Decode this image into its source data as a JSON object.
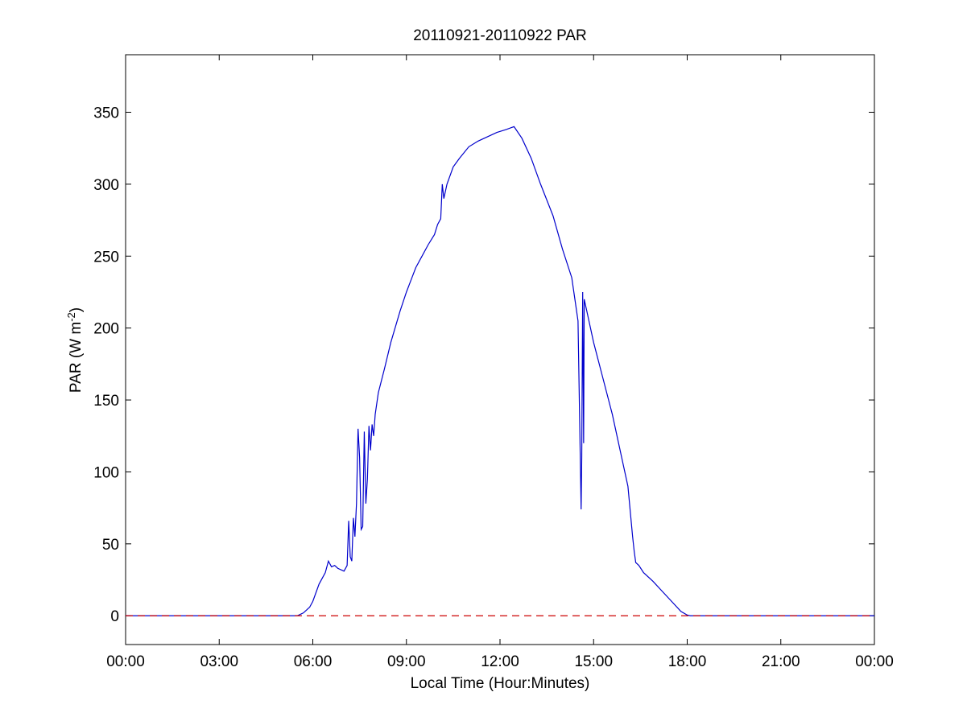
{
  "chart_data": {
    "type": "line",
    "title": "20110921-20110922 PAR",
    "xlabel": "Local Time (Hour:Minutes)",
    "ylabel": "PAR (W m",
    "ylabel_sup": "-2",
    "ylabel_close": ")",
    "xlim": [
      0,
      24
    ],
    "ylim": [
      -20,
      390
    ],
    "xticks": [
      {
        "value": 0,
        "label": "00:00"
      },
      {
        "value": 3,
        "label": "03:00"
      },
      {
        "value": 6,
        "label": "06:00"
      },
      {
        "value": 9,
        "label": "09:00"
      },
      {
        "value": 12,
        "label": "12:00"
      },
      {
        "value": 15,
        "label": "15:00"
      },
      {
        "value": 18,
        "label": "18:00"
      },
      {
        "value": 21,
        "label": "21:00"
      },
      {
        "value": 24,
        "label": "00:00"
      }
    ],
    "yticks": [
      {
        "value": 0,
        "label": "0"
      },
      {
        "value": 50,
        "label": "50"
      },
      {
        "value": 100,
        "label": "100"
      },
      {
        "value": 150,
        "label": "150"
      },
      {
        "value": 200,
        "label": "200"
      },
      {
        "value": 250,
        "label": "250"
      },
      {
        "value": 300,
        "label": "300"
      },
      {
        "value": 350,
        "label": "350"
      }
    ],
    "grid": false,
    "legend": "none",
    "series": [
      {
        "style": "solid",
        "color": "#0000cc",
        "x": [
          0,
          5.5,
          5.7,
          5.9,
          6.0,
          6.2,
          6.4,
          6.5,
          6.6,
          6.7,
          6.8,
          7.0,
          7.1,
          7.15,
          7.2,
          7.25,
          7.3,
          7.35,
          7.4,
          7.45,
          7.5,
          7.55,
          7.6,
          7.65,
          7.7,
          7.75,
          7.8,
          7.85,
          7.9,
          7.95,
          8.0,
          8.1,
          8.3,
          8.5,
          8.8,
          9.0,
          9.3,
          9.5,
          9.7,
          9.9,
          10.0,
          10.1,
          10.15,
          10.2,
          10.3,
          10.5,
          10.7,
          11.0,
          11.3,
          11.6,
          11.9,
          12.2,
          12.45,
          12.7,
          13.0,
          13.3,
          13.7,
          14.0,
          14.3,
          14.5,
          14.6,
          14.62,
          14.65,
          14.68,
          14.7,
          14.75,
          14.8,
          14.85,
          15.0,
          15.3,
          15.6,
          15.9,
          16.1,
          16.25,
          16.3,
          16.35,
          16.45,
          16.6,
          16.9,
          17.2,
          17.5,
          17.8,
          18.0,
          18.1,
          18.2,
          18.5,
          24
        ],
        "y": [
          0,
          0,
          2,
          6,
          10,
          22,
          30,
          38,
          34,
          35,
          33,
          31,
          35,
          66,
          41,
          38,
          68,
          55,
          78,
          130,
          110,
          60,
          62,
          128,
          78,
          95,
          132,
          115,
          133,
          125,
          140,
          155,
          172,
          190,
          212,
          225,
          242,
          250,
          258,
          265,
          272,
          276,
          300,
          290,
          300,
          312,
          318,
          326,
          330,
          333,
          336,
          338,
          340,
          332,
          318,
          300,
          278,
          255,
          235,
          205,
          74,
          110,
          225,
          120,
          220,
          215,
          210,
          205,
          190,
          165,
          140,
          110,
          90,
          55,
          45,
          37,
          35,
          30,
          24,
          17,
          10,
          3,
          0.5,
          0,
          0,
          0,
          0
        ]
      },
      {
        "style": "dashed",
        "color": "#cc0000",
        "x": [
          0,
          24
        ],
        "y": [
          0,
          0
        ]
      }
    ]
  }
}
